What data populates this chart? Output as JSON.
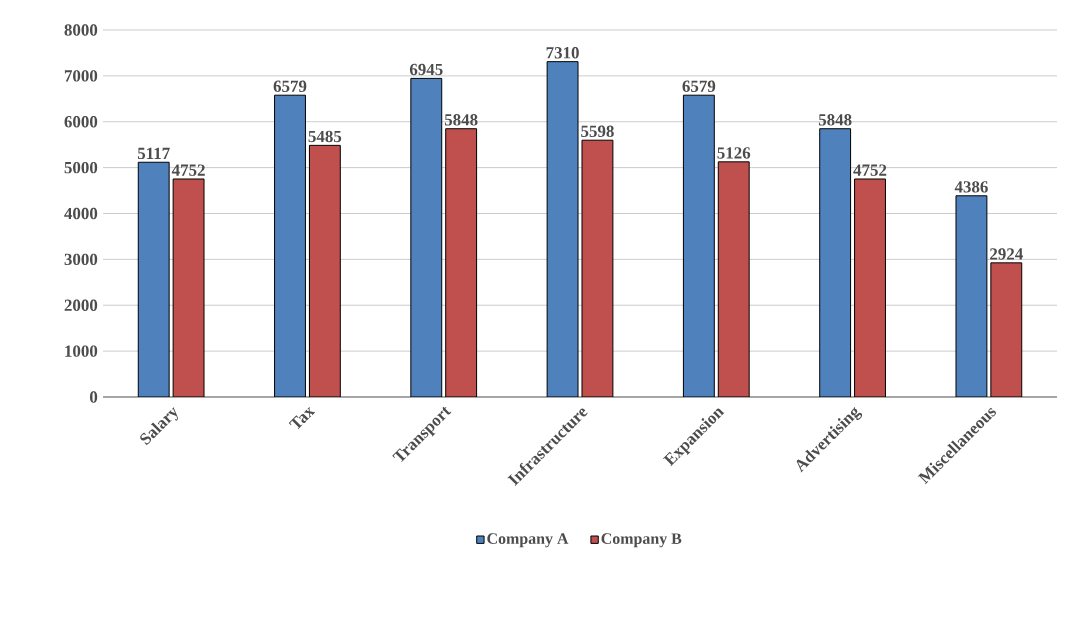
{
  "chart_data": {
    "type": "bar",
    "categories": [
      "Salary",
      "Tax",
      "Transport",
      "Infrastructure",
      "Expansion",
      "Advertising",
      "Miscellaneous"
    ],
    "series": [
      {
        "name": "Company A",
        "color": "#4f81bd",
        "values": [
          5117,
          6579,
          6945,
          7310,
          6579,
          5848,
          4386
        ]
      },
      {
        "name": "Company B",
        "color": "#c0504d",
        "values": [
          4752,
          5485,
          5848,
          5598,
          5126,
          4752,
          2924
        ]
      }
    ],
    "ylim": [
      0,
      8000
    ],
    "yticks": [
      0,
      1000,
      2000,
      3000,
      4000,
      5000,
      6000,
      7000,
      8000
    ],
    "grid": "y",
    "legend": "bottom",
    "data_labels": true
  }
}
